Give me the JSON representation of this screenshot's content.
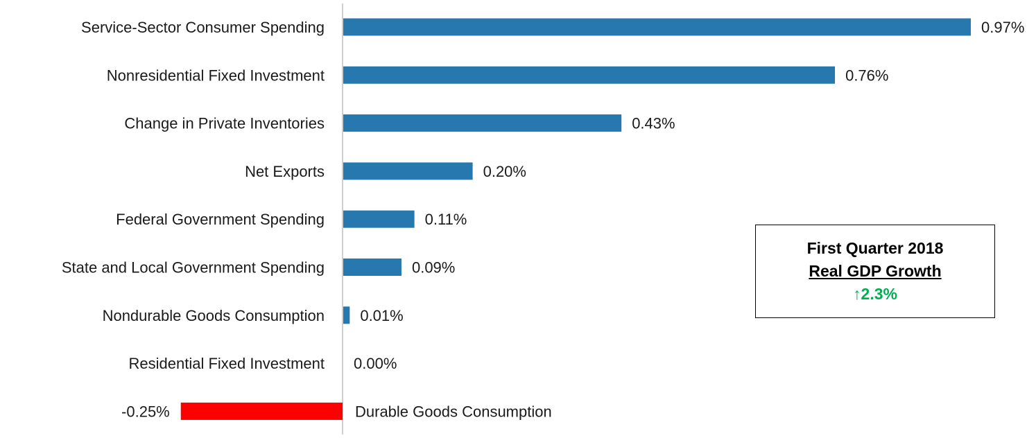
{
  "chart_data": {
    "type": "bar",
    "orientation": "horizontal",
    "title": "",
    "xlabel": "",
    "ylabel": "",
    "categories": [
      "Service-Sector Consumer Spending",
      "Nonresidential Fixed Investment",
      "Change in Private Inventories",
      "Net Exports",
      "Federal Government Spending",
      "State and Local Government Spending",
      "Nondurable Goods Consumption",
      "Residential Fixed Investment",
      "Durable Goods Consumption"
    ],
    "values": [
      0.97,
      0.76,
      0.43,
      0.2,
      0.11,
      0.09,
      0.01,
      0.0,
      -0.25
    ],
    "value_labels": [
      "0.97%",
      "0.76%",
      "0.43%",
      "0.20%",
      "0.11%",
      "0.09%",
      "0.01%",
      "0.00%",
      "-0.25%"
    ],
    "xlim": [
      -0.25,
      1.0
    ],
    "grid": false,
    "legend": false,
    "colors": {
      "positive": "#2878b0",
      "negative": "#ff0000",
      "axis": "#bfbfbf"
    }
  },
  "summary_box": {
    "title": "First Quarter 2018",
    "subtitle": "Real GDP Growth",
    "arrow": "↑",
    "value": "2.3%",
    "value_color": "#00b050"
  }
}
